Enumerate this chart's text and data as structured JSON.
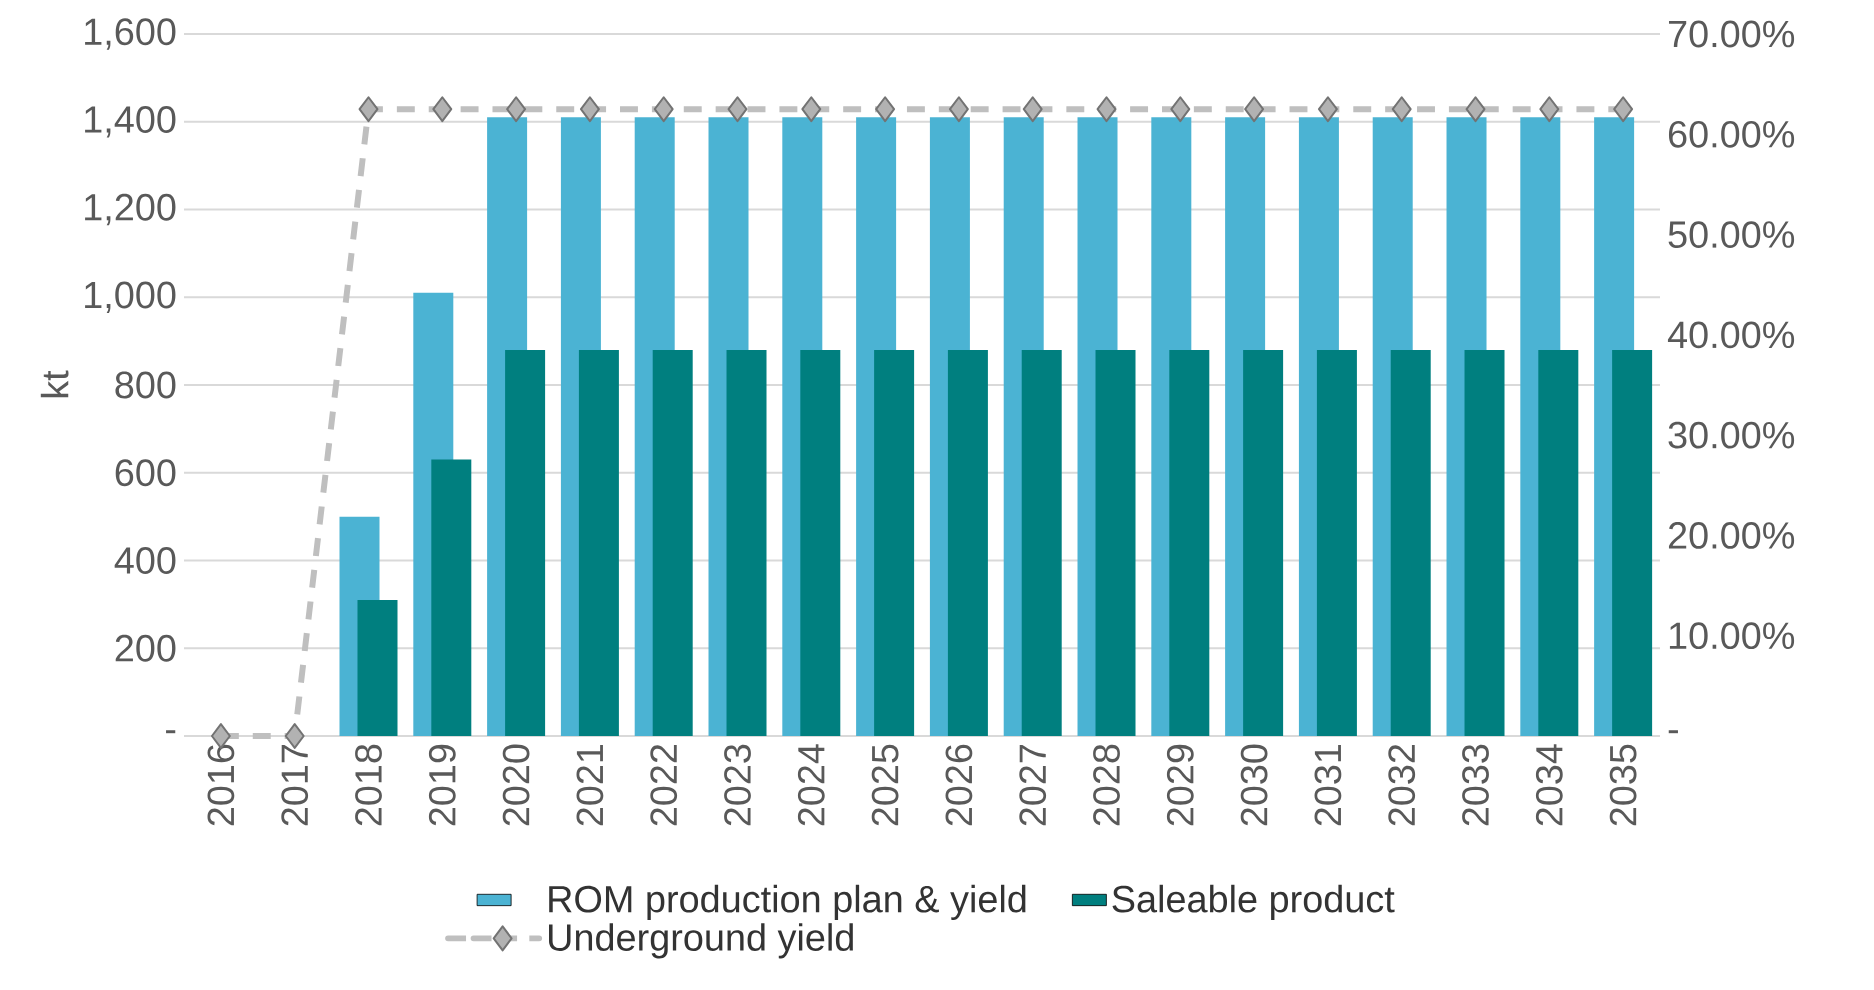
{
  "chart_data": {
    "type": "bar",
    "ylabel": "kt",
    "categories": [
      "2016",
      "2017",
      "2018",
      "2019",
      "2020",
      "2021",
      "2022",
      "2023",
      "2024",
      "2025",
      "2026",
      "2027",
      "2028",
      "2029",
      "2030",
      "2031",
      "2032",
      "2033",
      "2034",
      "2035"
    ],
    "series": [
      {
        "name": "ROM production plan & yield",
        "color": "#4bb3d3",
        "values": [
          0,
          0,
          500,
          1010,
          1410,
          1410,
          1410,
          1410,
          1410,
          1410,
          1410,
          1410,
          1410,
          1410,
          1410,
          1410,
          1410,
          1410,
          1410,
          1410
        ]
      },
      {
        "name": "Saleable product",
        "color": "#007f7f",
        "values": [
          0,
          0,
          310,
          630,
          880,
          880,
          880,
          880,
          880,
          880,
          880,
          880,
          880,
          880,
          880,
          880,
          880,
          880,
          880,
          880
        ]
      },
      {
        "name": "Underground yield",
        "type": "line",
        "axis": "y2",
        "color": "#bfbfbf",
        "marker": "diamond",
        "line_style": "dashed",
        "values": [
          0,
          0,
          62.5,
          62.5,
          62.5,
          62.5,
          62.5,
          62.5,
          62.5,
          62.5,
          62.5,
          62.5,
          62.5,
          62.5,
          62.5,
          62.5,
          62.5,
          62.5,
          62.5,
          62.5
        ]
      }
    ],
    "ylim": [
      0,
      1600
    ],
    "yticks": [
      {
        "value": 0,
        "label": "-"
      },
      {
        "value": 200,
        "label": "200"
      },
      {
        "value": 400,
        "label": "400"
      },
      {
        "value": 600,
        "label": "600"
      },
      {
        "value": 800,
        "label": "800"
      },
      {
        "value": 1000,
        "label": "1,000"
      },
      {
        "value": 1200,
        "label": "1,200"
      },
      {
        "value": 1400,
        "label": "1,400"
      },
      {
        "value": 1600,
        "label": "1,600"
      }
    ],
    "y2lim": [
      0,
      70
    ],
    "y2ticks": [
      {
        "value": 0,
        "label": "-"
      },
      {
        "value": 10,
        "label": "10.00%"
      },
      {
        "value": 20,
        "label": "20.00%"
      },
      {
        "value": 30,
        "label": "30.00%"
      },
      {
        "value": 40,
        "label": "40.00%"
      },
      {
        "value": 50,
        "label": "50.00%"
      },
      {
        "value": 60,
        "label": "60.00%"
      },
      {
        "value": 70,
        "label": "70.00%"
      }
    ],
    "grid": "y",
    "legend": "bottom"
  }
}
